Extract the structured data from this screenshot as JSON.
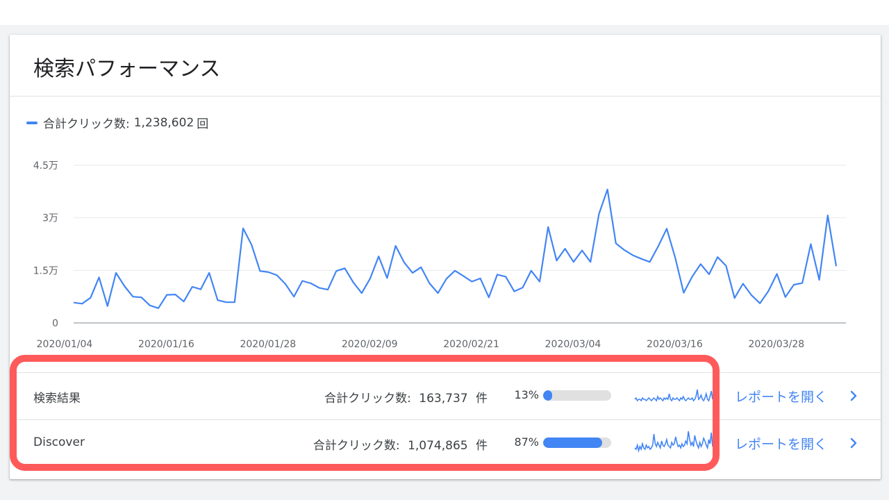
{
  "card": {
    "title": "検索パフォーマンス"
  },
  "legend": {
    "label": "合計クリック数:",
    "value": "1,238,602",
    "unit": "回"
  },
  "colors": {
    "accent": "#4285f4",
    "highlight": "#ff5a5a",
    "text": "#3c4043"
  },
  "chart_data": {
    "type": "line",
    "title": "",
    "xlabel": "",
    "ylabel": "",
    "ylim": [
      0,
      45000
    ],
    "y_ticks": [
      {
        "value": 0,
        "label": "0"
      },
      {
        "value": 15000,
        "label": "1.5万"
      },
      {
        "value": 30000,
        "label": "3万"
      },
      {
        "value": 45000,
        "label": "4.5万"
      }
    ],
    "x_tick_labels": [
      "2020/01/04",
      "2020/01/16",
      "2020/01/28",
      "2020/02/09",
      "2020/02/21",
      "2020/03/04",
      "2020/03/16",
      "2020/03/28"
    ],
    "x_start": "2020/01/04",
    "x_end": "2020/04/01",
    "grid": true,
    "legend_position": "top-left",
    "series": [
      {
        "name": "合計クリック数",
        "values": [
          5800,
          5500,
          7200,
          13000,
          4800,
          14300,
          10500,
          7500,
          7300,
          5000,
          4200,
          8000,
          8100,
          6100,
          10300,
          9600,
          14300,
          6500,
          5900,
          5900,
          27000,
          22300,
          14800,
          14500,
          13600,
          11100,
          7500,
          12000,
          11300,
          10000,
          9500,
          14800,
          15600,
          11600,
          8500,
          12700,
          19000,
          12800,
          22000,
          17300,
          14300,
          15900,
          11300,
          8500,
          12600,
          14900,
          13400,
          11800,
          12700,
          7300,
          13800,
          13200,
          9000,
          10100,
          14900,
          11800,
          27400,
          17800,
          21200,
          17400,
          20700,
          17400,
          31100,
          38100,
          22700,
          20800,
          19300,
          18300,
          17400,
          21900,
          26900,
          18600,
          8600,
          13200,
          16800,
          13900,
          18800,
          16300,
          7100,
          11200,
          7900,
          5600,
          9100,
          14000,
          7400,
          10900,
          11400,
          22500,
          12300,
          30700,
          16200
        ]
      }
    ]
  },
  "rows": [
    {
      "name": "検索結果",
      "metric_label": "合計クリック数:",
      "metric_value": "163,737",
      "metric_unit": "件",
      "percent_label": "13%",
      "percent": 13,
      "link": "レポートを開く",
      "sparkline": [
        5,
        6,
        4,
        5,
        5,
        4,
        6,
        5,
        5,
        4,
        5,
        6,
        5,
        4,
        5,
        6,
        5,
        4,
        7,
        5,
        6,
        5,
        4,
        6,
        5,
        6,
        5,
        9,
        5,
        4,
        6,
        5,
        5,
        6,
        5,
        4,
        6,
        5,
        7,
        5,
        4,
        5,
        6,
        5,
        5,
        6,
        4,
        5,
        7,
        12,
        5,
        6,
        8,
        5,
        4,
        6,
        9,
        5,
        4,
        7,
        11,
        5
      ]
    },
    {
      "name": "Discover",
      "metric_label": "合計クリック数:",
      "metric_value": "1,074,865",
      "metric_unit": "件",
      "percent_label": "87%",
      "percent": 87,
      "link": "レポートを開く",
      "sparkline": [
        4,
        3,
        6,
        2,
        5,
        3,
        7,
        4,
        3,
        6,
        4,
        5,
        3,
        4,
        6,
        14,
        7,
        5,
        8,
        6,
        4,
        9,
        6,
        5,
        7,
        10,
        6,
        5,
        4,
        8,
        6,
        7,
        12,
        8,
        5,
        6,
        4,
        7,
        5,
        6,
        9,
        7,
        16,
        10,
        6,
        8,
        5,
        13,
        9,
        6,
        4,
        8,
        5,
        7,
        11,
        9,
        6,
        4,
        10,
        7,
        15,
        5
      ]
    }
  ]
}
